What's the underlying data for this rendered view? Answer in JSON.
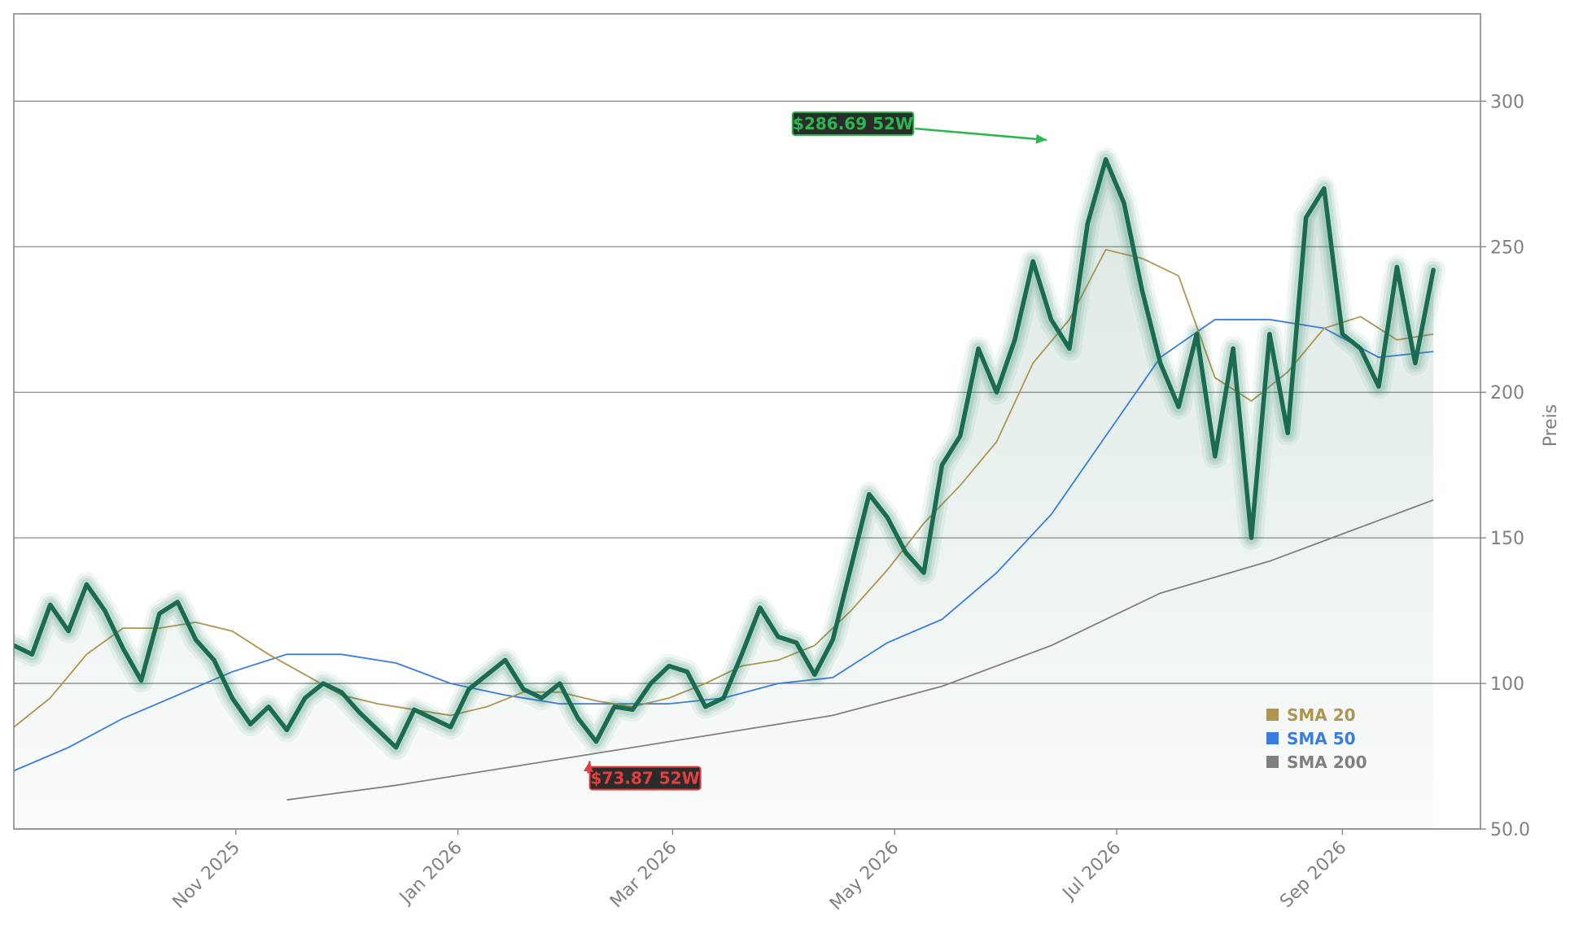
{
  "chart_data": {
    "type": "line",
    "ylabel": "Preis",
    "ylim": [
      50,
      330
    ],
    "xlim": [
      "2025-09-01",
      "2026-09-30"
    ],
    "y_ticks": [
      50,
      100,
      150,
      200,
      250,
      300
    ],
    "y_tick_labels": [
      "50.0",
      "100",
      "150",
      "200",
      "250",
      "300"
    ],
    "x_ticks": [
      "2025-11-01",
      "2026-01-01",
      "2026-03-01",
      "2026-05-01",
      "2026-07-01",
      "2026-09-01"
    ],
    "x_tick_labels": [
      "Nov 2025",
      "Jan 2026",
      "Mar 2026",
      "May 2026",
      "Jul 2026",
      "Sep 2026"
    ],
    "grid": "horizontal",
    "colors": {
      "price": "#1a6b50",
      "price_glow": "#1a7a58",
      "fill": "#1a6b50",
      "sma20": "#b09550",
      "sma50": "#3a7de0",
      "sma200": "#808080",
      "high_annotation": "#2ab84e",
      "low_annotation": "#e04040",
      "annotation_bg": "#2b2b2b"
    },
    "series": [
      {
        "name": "Price",
        "x": [
          "2025-09-01",
          "2025-09-06",
          "2025-09-11",
          "2025-09-16",
          "2025-09-21",
          "2025-09-26",
          "2025-10-01",
          "2025-10-06",
          "2025-10-11",
          "2025-10-16",
          "2025-10-21",
          "2025-10-26",
          "2025-10-31",
          "2025-11-05",
          "2025-11-10",
          "2025-11-15",
          "2025-11-20",
          "2025-11-25",
          "2025-11-30",
          "2025-12-05",
          "2025-12-10",
          "2025-12-15",
          "2025-12-20",
          "2025-12-25",
          "2025-12-30",
          "2026-01-04",
          "2026-01-09",
          "2026-01-14",
          "2026-01-19",
          "2026-01-24",
          "2026-01-29",
          "2026-02-03",
          "2026-02-08",
          "2026-02-13",
          "2026-02-18",
          "2026-02-23",
          "2026-02-28",
          "2026-03-05",
          "2026-03-10",
          "2026-03-15",
          "2026-03-20",
          "2026-03-25",
          "2026-03-30",
          "2026-04-04",
          "2026-04-09",
          "2026-04-14",
          "2026-04-19",
          "2026-04-24",
          "2026-04-29",
          "2026-05-04",
          "2026-05-09",
          "2026-05-14",
          "2026-05-19",
          "2026-05-24",
          "2026-05-29",
          "2026-06-03",
          "2026-06-08",
          "2026-06-13",
          "2026-06-18",
          "2026-06-23",
          "2026-06-28",
          "2026-07-03",
          "2026-07-08",
          "2026-07-13",
          "2026-07-18",
          "2026-07-23",
          "2026-07-28",
          "2026-08-02",
          "2026-08-07",
          "2026-08-12",
          "2026-08-17",
          "2026-08-22",
          "2026-08-27",
          "2026-09-01",
          "2026-09-06",
          "2026-09-11",
          "2026-09-16",
          "2026-09-21",
          "2026-09-26"
        ],
        "values": [
          113,
          110,
          127,
          118,
          134,
          125,
          112,
          101,
          124,
          128,
          115,
          108,
          95,
          86,
          92,
          84,
          95,
          100,
          97,
          90,
          84,
          78,
          91,
          88,
          85,
          98,
          103,
          108,
          98,
          95,
          100,
          88,
          80,
          92,
          91,
          100,
          106,
          104,
          92,
          95,
          110,
          126,
          116,
          114,
          103,
          115,
          140,
          165,
          157,
          145,
          138,
          175,
          185,
          215,
          200,
          218,
          245,
          225,
          215,
          258,
          280,
          265,
          235,
          210,
          195,
          220,
          178,
          215,
          150,
          220,
          186,
          260,
          270,
          220,
          215,
          202,
          243,
          210,
          242
        ]
      },
      {
        "name": "SMA 20",
        "x": [
          "2025-09-01",
          "2025-09-11",
          "2025-09-21",
          "2025-10-01",
          "2025-10-11",
          "2025-10-21",
          "2025-10-31",
          "2025-11-10",
          "2025-11-20",
          "2025-11-30",
          "2025-12-10",
          "2025-12-20",
          "2025-12-30",
          "2026-01-09",
          "2026-01-19",
          "2026-01-29",
          "2026-02-08",
          "2026-02-18",
          "2026-02-28",
          "2026-03-10",
          "2026-03-20",
          "2026-03-30",
          "2026-04-09",
          "2026-04-19",
          "2026-04-29",
          "2026-05-09",
          "2026-05-19",
          "2026-05-29",
          "2026-06-08",
          "2026-06-18",
          "2026-06-28",
          "2026-07-08",
          "2026-07-18",
          "2026-07-28",
          "2026-08-07",
          "2026-08-17",
          "2026-08-27",
          "2026-09-06",
          "2026-09-16",
          "2026-09-26"
        ],
        "values": [
          85,
          95,
          110,
          119,
          119,
          121,
          118,
          110,
          103,
          96,
          93,
          91,
          89,
          92,
          97,
          97,
          94,
          92,
          95,
          100,
          106,
          108,
          113,
          125,
          139,
          155,
          168,
          183,
          210,
          225,
          249,
          246,
          240,
          205,
          197,
          207,
          222,
          226,
          218,
          220
        ]
      },
      {
        "name": "SMA 50",
        "x": [
          "2025-09-01",
          "2025-09-16",
          "2025-10-01",
          "2025-10-16",
          "2025-10-31",
          "2025-11-15",
          "2025-11-30",
          "2025-12-15",
          "2025-12-30",
          "2026-01-14",
          "2026-01-29",
          "2026-02-13",
          "2026-02-28",
          "2026-03-15",
          "2026-03-30",
          "2026-04-14",
          "2026-04-29",
          "2026-05-14",
          "2026-05-29",
          "2026-06-13",
          "2026-06-28",
          "2026-07-13",
          "2026-07-28",
          "2026-08-12",
          "2026-08-27",
          "2026-09-11",
          "2026-09-26"
        ],
        "values": [
          70,
          78,
          88,
          96,
          104,
          110,
          110,
          107,
          100,
          96,
          93,
          93,
          93,
          95,
          100,
          102,
          114,
          122,
          138,
          158,
          185,
          212,
          225,
          225,
          222,
          212,
          214
        ]
      },
      {
        "name": "SMA 200",
        "x": [
          "2025-11-15",
          "2025-12-15",
          "2026-01-14",
          "2026-02-13",
          "2026-03-15",
          "2026-04-14",
          "2026-05-14",
          "2026-06-13",
          "2026-07-13",
          "2026-08-12",
          "2026-09-11",
          "2026-09-26"
        ],
        "values": [
          60,
          65,
          71,
          77,
          83,
          89,
          99,
          113,
          131,
          142,
          156,
          163
        ]
      }
    ],
    "legend": {
      "placement": "bottom-right",
      "entries": [
        "SMA 20",
        "SMA 50",
        "SMA 200"
      ]
    },
    "annotations": [
      {
        "label": "$286.69 52W",
        "kind": "high",
        "x": "2026-06-14",
        "value": 286.69
      },
      {
        "label": "$73.87 52W",
        "kind": "low",
        "x": "2026-02-04",
        "value": 73.87
      }
    ]
  }
}
